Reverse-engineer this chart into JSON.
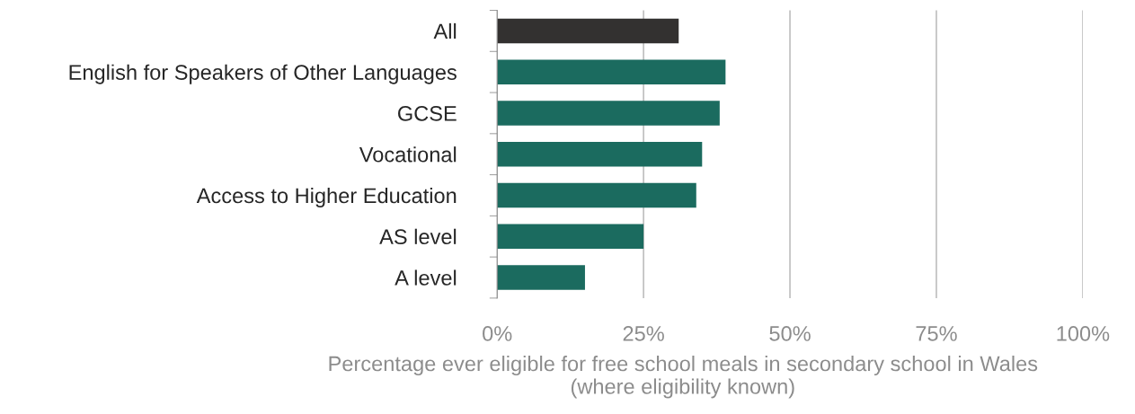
{
  "chart_data": {
    "type": "bar",
    "orientation": "horizontal",
    "categories": [
      "All",
      "English for Speakers of Other Languages",
      "GCSE",
      "Vocational",
      "Access to Higher Education",
      "AS level",
      "A level"
    ],
    "values": [
      31,
      39,
      38,
      35,
      34,
      25,
      15
    ],
    "colors": [
      "#333130",
      "#1b6b5f",
      "#1b6b5f",
      "#1b6b5f",
      "#1b6b5f",
      "#1b6b5f",
      "#1b6b5f"
    ],
    "xlabel": "Percentage ever eligible for free school meals in secondary school in Wales\n(where eligibility known)",
    "xlim": [
      0,
      100
    ],
    "xticks": [
      {
        "value": 0,
        "label": "0%"
      },
      {
        "value": 25,
        "label": "25%"
      },
      {
        "value": 50,
        "label": "50%"
      },
      {
        "value": 75,
        "label": "75%"
      },
      {
        "value": 100,
        "label": "100%"
      }
    ],
    "grid": "x",
    "legend": false
  }
}
